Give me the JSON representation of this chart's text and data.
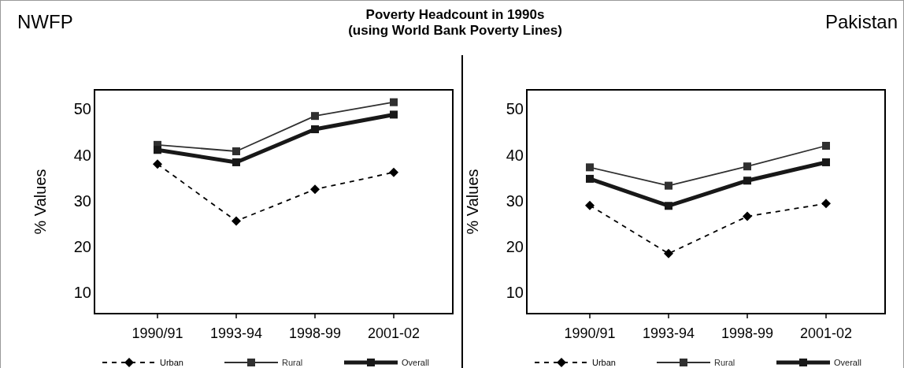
{
  "chart_data": [
    {
      "type": "line",
      "title": "NWFP",
      "subtitle": "Poverty Headcount in 1990s\n(using World Bank Poverty Lines)",
      "ylabel": "% Values",
      "categories": [
        "1990/91",
        "1993-94",
        "1998-99",
        "2001-02"
      ],
      "ylim": [
        5.4,
        54.2
      ],
      "yticks": [
        10,
        20,
        30,
        40,
        50
      ],
      "grid": false,
      "legend": "bottom",
      "series": [
        {
          "name": "Urban",
          "color": "#000000",
          "marker": "diamond",
          "line_style": "dashed",
          "values": [
            38,
            25.6,
            32.5,
            36.2
          ]
        },
        {
          "name": "Rural",
          "color": "#303030",
          "marker": "square",
          "line_style": "solid",
          "values": [
            42.2,
            40.8,
            48.5,
            51.5
          ]
        },
        {
          "name": "Overall",
          "color": "#181818",
          "marker": "square",
          "line_style": "solid",
          "values": [
            41.1,
            38.4,
            45.6,
            48.8
          ]
        }
      ]
    },
    {
      "type": "line",
      "title": "Pakistan",
      "ylabel": "% Values",
      "categories": [
        "1990/91",
        "1993-94",
        "1998-99",
        "2001-02"
      ],
      "ylim": [
        5.4,
        54.2
      ],
      "yticks": [
        10,
        20,
        30,
        40,
        50
      ],
      "grid": false,
      "legend": "bottom",
      "series": [
        {
          "name": "Urban",
          "color": "#000000",
          "marker": "diamond",
          "line_style": "dashed",
          "values": [
            29,
            18.5,
            26.6,
            29.4
          ]
        },
        {
          "name": "Rural",
          "color": "#303030",
          "marker": "square",
          "line_style": "solid",
          "values": [
            37.3,
            33.3,
            37.5,
            42
          ]
        },
        {
          "name": "Overall",
          "color": "#181818",
          "marker": "square",
          "line_style": "solid",
          "values": [
            34.8,
            28.9,
            34.4,
            38.4
          ]
        }
      ]
    }
  ]
}
